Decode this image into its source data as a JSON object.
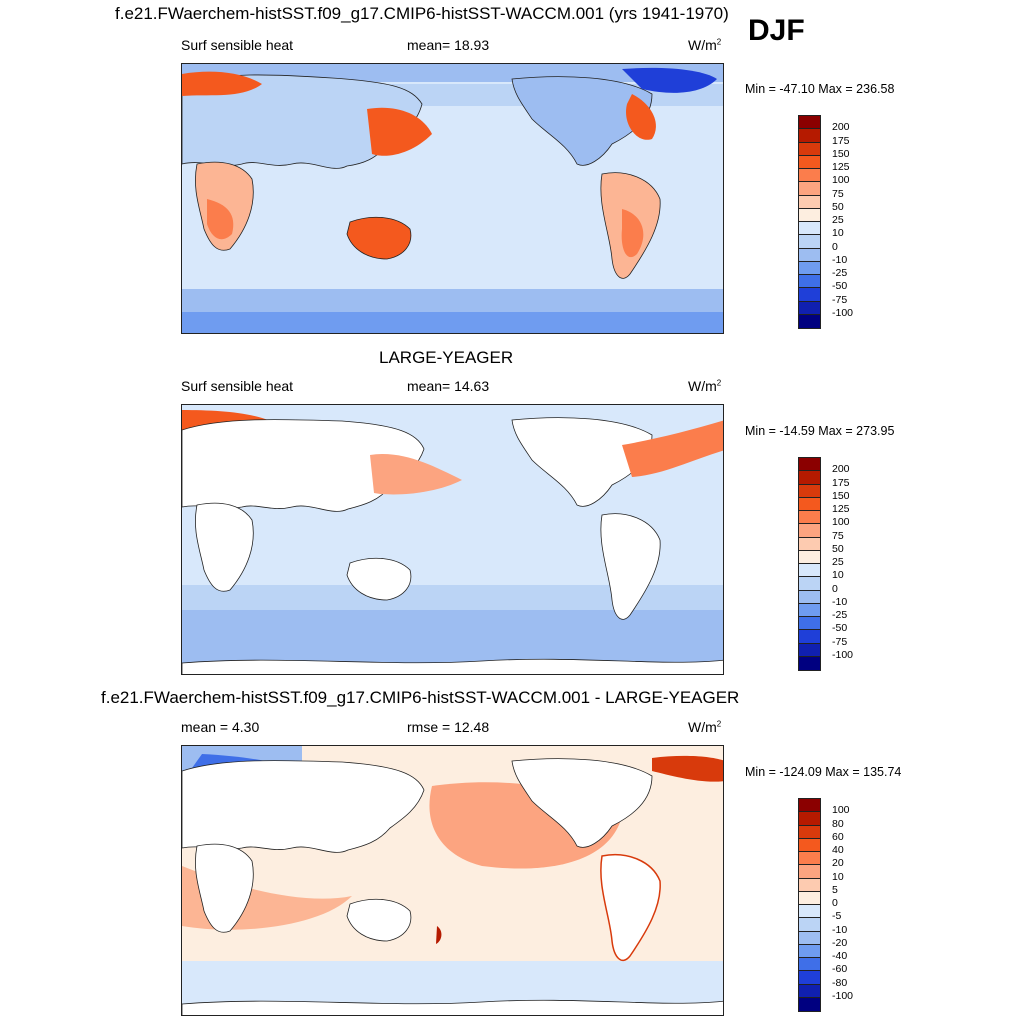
{
  "season": "DJF",
  "panels": [
    {
      "title": "f.e21.FWaerchem-histSST.f09_g17.CMIP6-histSST-WACCM.001 (yrs 1941-1970)",
      "left_label": "Surf sensible heat",
      "center_label": "mean=  18.93",
      "units": "W/m",
      "units_sup": "2",
      "minmax": "Min = -47.10 Max = 236.58",
      "colorbar": {
        "levels": [
          "200",
          "175",
          "150",
          "125",
          "100",
          "75",
          "50",
          "25",
          "10",
          "0",
          "-10",
          "-25",
          "-50",
          "-75",
          "-100"
        ],
        "colors": [
          "#8b0000",
          "#b51a00",
          "#d83a0c",
          "#f4591e",
          "#fb7d4c",
          "#fca480",
          "#fdcbb0",
          "#fdeee0",
          "#d8e8fb",
          "#bbd4f5",
          "#9dbdf1",
          "#6f9cf0",
          "#3f6fe8",
          "#1f3fd8",
          "#1020b0",
          "#000080"
        ]
      },
      "chart_data": {
        "type": "heatmap",
        "variable": "Surf sensible heat",
        "statistic": {
          "mean": 18.93
        },
        "min": -47.1,
        "max": 236.58,
        "units": "W/m^2",
        "projection": "cylindrical equidistant, global, Pacific-centered"
      }
    },
    {
      "title": "LARGE-YEAGER",
      "left_label": "Surf sensible heat",
      "center_label": "mean=  14.63",
      "units": "W/m",
      "units_sup": "2",
      "minmax": "Min = -14.59 Max = 273.95",
      "colorbar": {
        "levels": [
          "200",
          "175",
          "150",
          "125",
          "100",
          "75",
          "50",
          "25",
          "10",
          "0",
          "-10",
          "-25",
          "-50",
          "-75",
          "-100"
        ],
        "colors": [
          "#8b0000",
          "#b51a00",
          "#d83a0c",
          "#f4591e",
          "#fb7d4c",
          "#fca480",
          "#fdcbb0",
          "#fdeee0",
          "#d8e8fb",
          "#bbd4f5",
          "#9dbdf1",
          "#6f9cf0",
          "#3f6fe8",
          "#1f3fd8",
          "#1020b0",
          "#000080"
        ]
      },
      "chart_data": {
        "type": "heatmap",
        "variable": "Surf sensible heat",
        "statistic": {
          "mean": 14.63
        },
        "min": -14.59,
        "max": 273.95,
        "units": "W/m^2",
        "projection": "cylindrical equidistant, global, Pacific-centered"
      }
    },
    {
      "title": "f.e21.FWaerchem-histSST.f09_g17.CMIP6-histSST-WACCM.001 - LARGE-YEAGER",
      "left_label": "mean =   4.30",
      "center_label": "rmse =  12.48",
      "units": "W/m",
      "units_sup": "2",
      "minmax": "Min = -124.09 Max = 135.74",
      "colorbar": {
        "levels": [
          "100",
          "80",
          "60",
          "40",
          "20",
          "10",
          "5",
          "0",
          "-5",
          "-10",
          "-20",
          "-40",
          "-60",
          "-80",
          "-100"
        ],
        "colors": [
          "#8b0000",
          "#b51a00",
          "#d83a0c",
          "#f4591e",
          "#fb7d4c",
          "#fca480",
          "#fdcbb0",
          "#fdeee0",
          "#d8e8fb",
          "#bbd4f5",
          "#9dbdf1",
          "#6f9cf0",
          "#3f6fe8",
          "#1f3fd8",
          "#1020b0",
          "#000080"
        ]
      },
      "chart_data": {
        "type": "heatmap",
        "variable": "Surf sensible heat difference",
        "statistic": {
          "mean": 4.3,
          "rmse": 12.48
        },
        "min": -124.09,
        "max": 135.74,
        "units": "W/m^2",
        "projection": "cylindrical equidistant, global, Pacific-centered"
      }
    }
  ]
}
